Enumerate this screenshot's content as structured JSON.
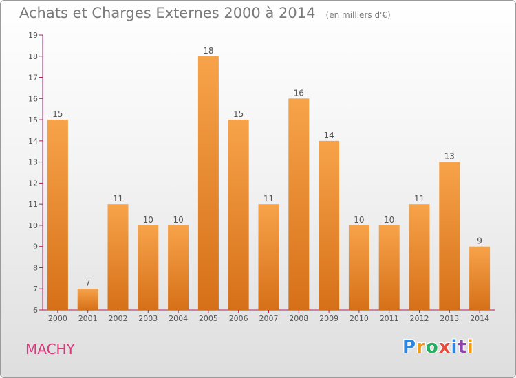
{
  "chart_data": {
    "type": "bar",
    "title": "Achats et Charges Externes 2000 à 2014",
    "subtitle": "(en milliers d'€)",
    "categories": [
      "2000",
      "2001",
      "2002",
      "2003",
      "2004",
      "2005",
      "2006",
      "2007",
      "2008",
      "2009",
      "2010",
      "2011",
      "2012",
      "2013",
      "2014"
    ],
    "values": [
      15,
      7,
      11,
      10,
      10,
      18,
      15,
      11,
      16,
      14,
      10,
      10,
      11,
      13,
      9
    ],
    "ylim": [
      6,
      19
    ],
    "yticks": [
      6,
      7,
      8,
      9,
      10,
      11,
      12,
      13,
      14,
      15,
      16,
      17,
      18,
      19
    ],
    "grid": false,
    "legend": "none",
    "xlabel": "",
    "ylabel": ""
  },
  "colors": {
    "bar_light": "#f7a34a",
    "bar_dark": "#d67018",
    "title": "#7a7a7a",
    "town": "#d63a7a",
    "axis": "#c2185b"
  },
  "footer": {
    "town": "MACHY",
    "logo_letters": [
      {
        "char": "P",
        "color": "#2e86de"
      },
      {
        "char": "r",
        "color": "#f39c12"
      },
      {
        "char": "o",
        "color": "#27ae60"
      },
      {
        "char": "x",
        "color": "#e74c3c"
      },
      {
        "char": "i",
        "color": "#2e86de"
      },
      {
        "char": "t",
        "color": "#8e44ad"
      },
      {
        "char": "i",
        "color": "#f39c12"
      }
    ]
  }
}
